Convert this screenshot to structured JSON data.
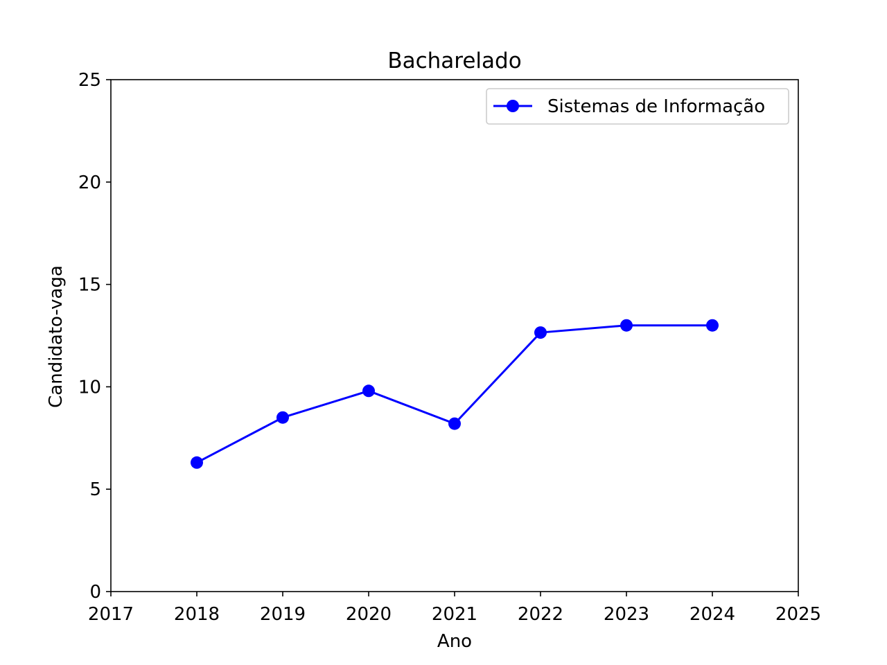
{
  "chart_data": {
    "type": "line",
    "title": "Bacharelado",
    "xlabel": "Ano",
    "ylabel": "Candidato-vaga",
    "xlim": [
      2017,
      2025
    ],
    "ylim": [
      0,
      25
    ],
    "xticks": [
      "2017",
      "2018",
      "2019",
      "2020",
      "2021",
      "2022",
      "2023",
      "2024",
      "2025"
    ],
    "yticks": [
      "0",
      "5",
      "10",
      "15",
      "20",
      "25"
    ],
    "grid": false,
    "legend_position": "top-right",
    "series": [
      {
        "name": "Sistemas de Informação",
        "color": "#0000ff",
        "marker": "circle",
        "x": [
          2018,
          2019,
          2020,
          2021,
          2022,
          2023,
          2024
        ],
        "y": [
          6.3,
          8.5,
          9.8,
          8.2,
          12.65,
          13.0,
          13.0
        ]
      }
    ]
  }
}
